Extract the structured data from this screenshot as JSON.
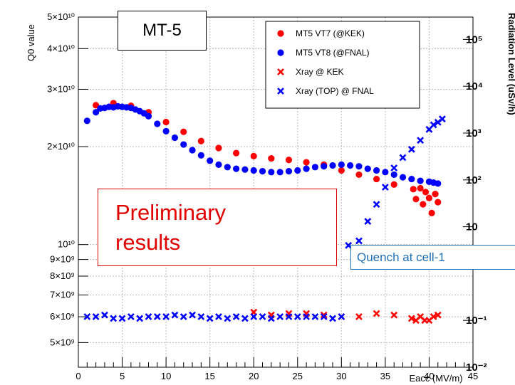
{
  "chart_data": {
    "type": "scatter",
    "xlabel": "Eacc (MV/m)",
    "ylabel": "Q0 value",
    "y2label": "Radiation Level (uSv/h)",
    "xlim": [
      0,
      45
    ],
    "ylim": [
      4200000000,
      50000000000
    ],
    "ylog": true,
    "y2lim": [
      0.01,
      300000
    ],
    "y2log": true,
    "grid": true,
    "x_ticks": [
      "0",
      "5",
      "10",
      "15",
      "20",
      "25",
      "30",
      "35",
      "40",
      "45"
    ],
    "y_ticks": [
      {
        "value": 5000000000,
        "label": "5×10⁹"
      },
      {
        "value": 6000000000,
        "label": "6×10⁹"
      },
      {
        "value": 7000000000,
        "label": "7×10⁹"
      },
      {
        "value": 8000000000,
        "label": "8×10⁹"
      },
      {
        "value": 9000000000,
        "label": "9×10⁹"
      },
      {
        "value": 10000000000,
        "label": "10¹⁰"
      },
      {
        "value": 20000000000,
        "label": "2×10¹⁰"
      },
      {
        "value": 30000000000,
        "label": "3×10¹⁰"
      },
      {
        "value": 40000000000,
        "label": "4×10¹⁰"
      },
      {
        "value": 50000000000,
        "label": "5×10¹⁰"
      }
    ],
    "y2_ticks": [
      {
        "value": 0.01,
        "label": "10⁻²"
      },
      {
        "value": 0.1,
        "label": "10⁻¹"
      },
      {
        "value": 10,
        "label": "10"
      },
      {
        "value": 100,
        "label": "10²"
      },
      {
        "value": 1000,
        "label": "10³"
      },
      {
        "value": 10000,
        "label": "10⁴"
      },
      {
        "value": 100000,
        "label": "10⁵"
      }
    ],
    "legend_position": "top-right",
    "series": [
      {
        "name": "MT5 VT7 (@KEK)",
        "axis": "left",
        "marker": "dot",
        "color": "#ff0000",
        "x": [
          2,
          4,
          6,
          8,
          10,
          12,
          14,
          16,
          18,
          20,
          22,
          24,
          26,
          28,
          30,
          32,
          34,
          36,
          38.2,
          38.5,
          39.0,
          39.3,
          39.6,
          40.0,
          40.3,
          40.7,
          41.0
        ],
        "y": [
          26800000000,
          27200000000,
          26700000000,
          25500000000,
          23800000000,
          22200000000,
          20800000000,
          19800000000,
          19100000000,
          18700000000,
          18400000000,
          18200000000,
          17900000000,
          17600000000,
          16900000000,
          16400000000,
          15900000000,
          15300000000,
          14800000000,
          13800000000,
          14900000000,
          13300000000,
          14500000000,
          13900000000,
          12500000000,
          14300000000,
          13500000000
        ]
      },
      {
        "name": "MT5 VT8 (@FNAL)",
        "axis": "left",
        "marker": "dot",
        "color": "#0000ff",
        "x": [
          1,
          2,
          2.5,
          3,
          3.5,
          4,
          4.5,
          5,
          5.5,
          6,
          6.5,
          7,
          7.5,
          8,
          9,
          10,
          11,
          12,
          13,
          14,
          15,
          16,
          17,
          18,
          19,
          20,
          21,
          22,
          23,
          24,
          25,
          26,
          27,
          28,
          29,
          30,
          31,
          32,
          33,
          34,
          35,
          36,
          37,
          38,
          39,
          40,
          40.5,
          41
        ],
        "y": [
          24000000000,
          25500000000,
          26200000000,
          26300000000,
          26500000000,
          26400000000,
          26600000000,
          26500000000,
          26400000000,
          26300000000,
          26000000000,
          25700000000,
          25300000000,
          24800000000,
          23500000000,
          22300000000,
          21300000000,
          20300000000,
          19500000000,
          18800000000,
          18100000000,
          17600000000,
          17300000000,
          17100000000,
          17000000000,
          16900000000,
          16800000000,
          16700000000,
          16700000000,
          16800000000,
          16900000000,
          17100000000,
          17300000000,
          17400000000,
          17500000000,
          17600000000,
          17500000000,
          17400000000,
          17100000000,
          16900000000,
          16700000000,
          16400000000,
          16100000000,
          15900000000,
          15700000000,
          15600000000,
          15500000000,
          15400000000
        ]
      },
      {
        "name": "Xray @ KEK",
        "axis": "right",
        "marker": "cross",
        "color": "#ff0000",
        "x": [
          20,
          22,
          24,
          26,
          28,
          30,
          32,
          34,
          36,
          38,
          38.5,
          39,
          39.5,
          40,
          40.5,
          41
        ],
        "y": [
          0.15,
          0.13,
          0.14,
          0.14,
          0.13,
          0.12,
          0.12,
          0.14,
          0.13,
          0.11,
          0.1,
          0.12,
          0.1,
          0.1,
          0.12,
          0.13
        ]
      },
      {
        "name": "Xray (TOP) @ FNAL",
        "axis": "right",
        "marker": "cross",
        "color": "#0000ff",
        "x": [
          1,
          2,
          3,
          4,
          5,
          6,
          7,
          8,
          9,
          10,
          11,
          12,
          13,
          14,
          15,
          16,
          17,
          18,
          19,
          20,
          21,
          22,
          23,
          24,
          25,
          26,
          27,
          28,
          29,
          30,
          30.8,
          32,
          33,
          34,
          35,
          36,
          37,
          38,
          39,
          40,
          40.5,
          41,
          41.5
        ],
        "y": [
          0.12,
          0.12,
          0.13,
          0.11,
          0.11,
          0.12,
          0.11,
          0.12,
          0.12,
          0.12,
          0.13,
          0.12,
          0.13,
          0.12,
          0.11,
          0.12,
          0.11,
          0.12,
          0.11,
          0.12,
          0.12,
          0.11,
          0.12,
          0.12,
          0.12,
          0.12,
          0.12,
          0.12,
          0.11,
          0.12,
          4,
          5,
          13,
          30,
          70,
          180,
          300,
          450,
          700,
          1200,
          1500,
          1700,
          2000
        ]
      }
    ]
  },
  "annotations": {
    "mt_label": "MT-5",
    "preliminary_text": "Preliminary\nresults",
    "quench_text": "Quench at cell-1"
  }
}
